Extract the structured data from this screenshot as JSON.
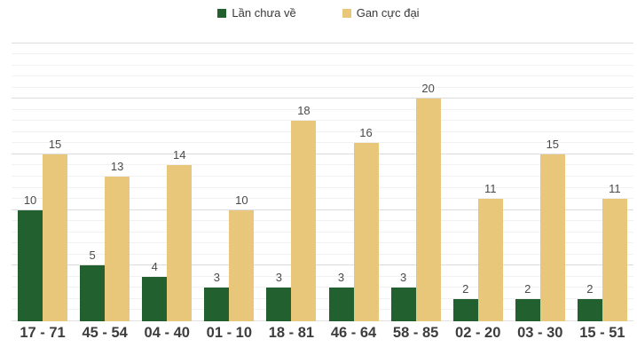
{
  "chart_data": {
    "type": "bar",
    "title": "",
    "xlabel": "",
    "ylabel": "",
    "categories": [
      "17 - 71",
      "45 - 54",
      "04 - 40",
      "01 - 10",
      "18 - 81",
      "46 - 64",
      "58 - 85",
      "02 - 20",
      "03 - 30",
      "15 - 51"
    ],
    "series": [
      {
        "name": "Lần chưa về",
        "color": "#22602f",
        "values": [
          10,
          5,
          4,
          3,
          3,
          3,
          3,
          2,
          2,
          2
        ]
      },
      {
        "name": "Gan cực đại",
        "color": "#e9c77a",
        "values": [
          15,
          13,
          14,
          10,
          18,
          16,
          20,
          11,
          15,
          11
        ]
      }
    ],
    "ylim": [
      0,
      25.2
    ],
    "grid": "horizontal, minor line every 1 unit, major line every 5 units",
    "y_axis_labels_visible": false,
    "legend_position": "top-center",
    "value_labels": "above each bar"
  },
  "style": {
    "background": "#ffffff",
    "minor_gridline_color": "#f1f1f1",
    "major_gridline_color": "#dcdcdc",
    "baseline_color": "#e2e2e2",
    "value_label_color": "#4a4a4a",
    "axis_label_color": "#3d3d3d",
    "legend_text_color": "#383838"
  }
}
